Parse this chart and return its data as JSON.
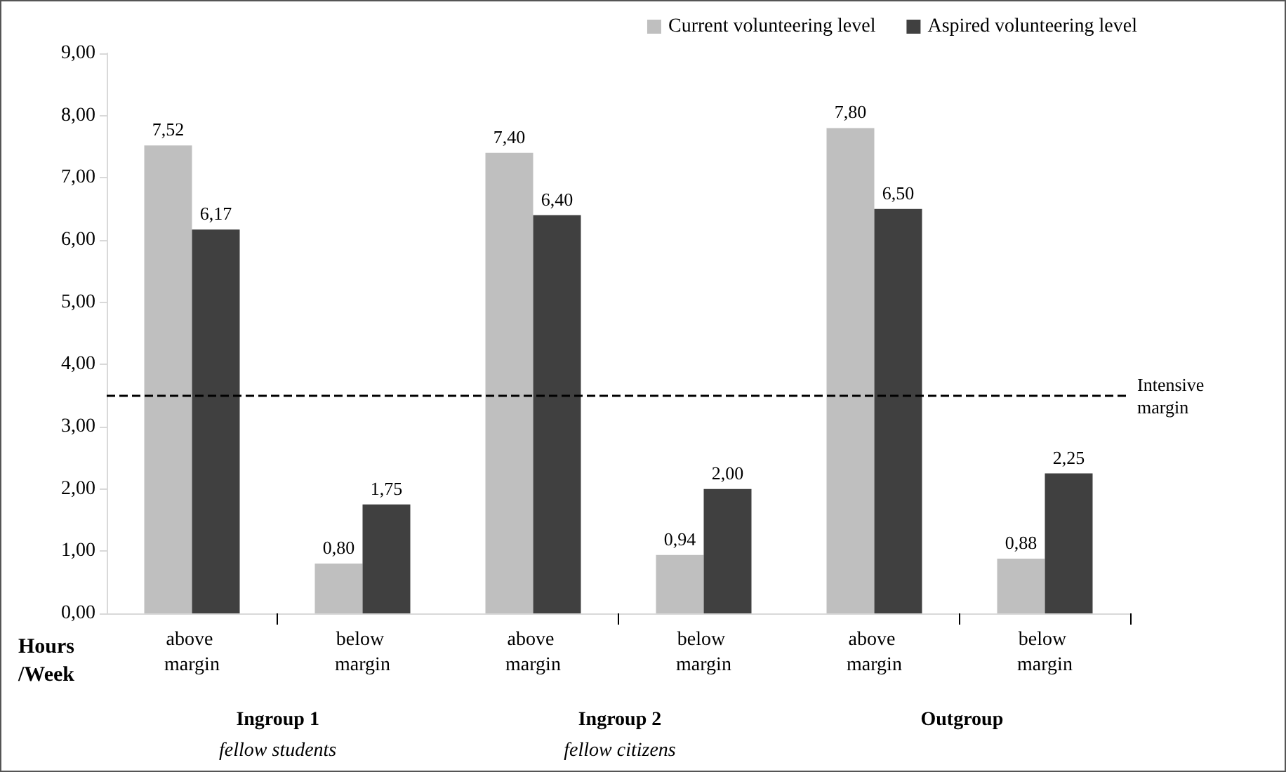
{
  "chart_data": {
    "type": "bar",
    "ylabel": "Hours /Week",
    "categories": [
      "above margin",
      "below margin",
      "above margin",
      "below margin",
      "above margin",
      "below margin"
    ],
    "series": [
      {
        "name": "Current volunteering level",
        "color": "#bfbfbf",
        "values": [
          7.52,
          0.8,
          7.4,
          0.94,
          7.8,
          0.88
        ],
        "value_labels": [
          "7,52",
          "0,80",
          "7,40",
          "0,94",
          "7,80",
          "0,88"
        ]
      },
      {
        "name": "Aspired volunteering level",
        "color": "#404040",
        "values": [
          6.17,
          1.75,
          6.4,
          2.0,
          6.5,
          2.25
        ],
        "value_labels": [
          "6,17",
          "1,75",
          "6,40",
          "2,00",
          "6,50",
          "2,25"
        ]
      }
    ],
    "ylim": [
      0,
      9
    ],
    "yticks": [
      {
        "value": 0,
        "label": "0,00"
      },
      {
        "value": 1,
        "label": "1,00"
      },
      {
        "value": 2,
        "label": "2,00"
      },
      {
        "value": 3,
        "label": "3,00"
      },
      {
        "value": 4,
        "label": "4,00"
      },
      {
        "value": 5,
        "label": "5,00"
      },
      {
        "value": 6,
        "label": "6,00"
      },
      {
        "value": 7,
        "label": "7,00"
      },
      {
        "value": 8,
        "label": "8,00"
      },
      {
        "value": 9,
        "label": "9,00"
      }
    ],
    "ref_lines": [
      {
        "axis": "y",
        "value": 3.5,
        "label": "Intensive margin",
        "color": "#000000",
        "line_style": "dashed"
      }
    ],
    "annotations": [
      "Ingroup 1\nfellow students",
      "Ingroup 2\nfellow citizens",
      "Outgroup"
    ],
    "grid": false,
    "legend": "top right"
  }
}
